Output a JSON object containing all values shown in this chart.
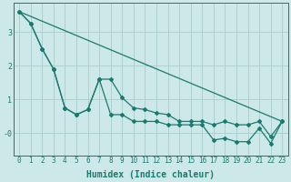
{
  "xlabel": "Humidex (Indice chaleur)",
  "background_color": "#cce8e8",
  "grid_color": "#aacccc",
  "line_color": "#1a7a6e",
  "xlim": [
    -0.5,
    23.5
  ],
  "ylim": [
    -0.65,
    3.85
  ],
  "yticks": [
    0,
    1,
    2,
    3
  ],
  "ytick_labels": [
    "-0",
    "1",
    "2",
    "3"
  ],
  "xticks": [
    0,
    1,
    2,
    3,
    4,
    5,
    6,
    7,
    8,
    9,
    10,
    11,
    12,
    13,
    14,
    15,
    16,
    17,
    18,
    19,
    20,
    21,
    22,
    23
  ],
  "line1_x": [
    0,
    1,
    2,
    3,
    4,
    5,
    6,
    7,
    8,
    9,
    10,
    11,
    12,
    13,
    14,
    15,
    16,
    17,
    18,
    19,
    20,
    21,
    22,
    23
  ],
  "line1_y": [
    3.6,
    3.25,
    2.5,
    1.9,
    0.75,
    0.55,
    0.7,
    1.6,
    1.6,
    1.05,
    0.75,
    0.7,
    0.6,
    0.55,
    0.35,
    0.35,
    0.35,
    0.25,
    0.35,
    0.25,
    0.25,
    0.35,
    -0.1,
    0.35
  ],
  "line2_x": [
    0,
    1,
    2,
    3,
    4,
    5,
    6,
    7,
    8,
    9,
    10,
    11,
    12,
    13,
    14,
    15,
    16,
    17,
    18,
    19,
    20,
    21,
    22,
    23
  ],
  "line2_y": [
    3.6,
    3.25,
    2.5,
    1.9,
    0.75,
    0.55,
    0.7,
    1.6,
    0.55,
    0.55,
    0.35,
    0.35,
    0.35,
    0.25,
    0.25,
    0.25,
    0.25,
    -0.2,
    -0.15,
    -0.25,
    -0.25,
    0.15,
    -0.3,
    0.35
  ],
  "trend_x": [
    0,
    23
  ],
  "trend_y": [
    3.6,
    0.35
  ],
  "font_size_label": 7,
  "font_size_tick": 5.5,
  "marker": "D",
  "marker_size": 2.0
}
